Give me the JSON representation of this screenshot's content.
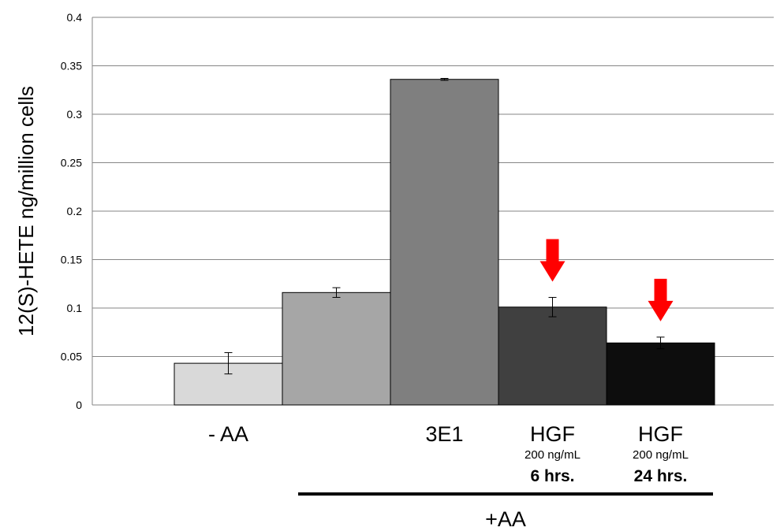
{
  "chart_data": {
    "type": "bar",
    "ylabel": "12(S)-HETE ng/million cells",
    "xlabel": "",
    "ylim": [
      0,
      0.4
    ],
    "y_ticks": [
      "0",
      "0.05",
      "0.1",
      "0.15",
      "0.2",
      "0.25",
      "0.3",
      "0.35",
      "0.4"
    ],
    "grid": true,
    "categories": [
      {
        "label": "- AA",
        "sub": "",
        "time": ""
      },
      {
        "label": "",
        "sub": "",
        "time": ""
      },
      {
        "label": "3E1",
        "sub": "",
        "time": ""
      },
      {
        "label": "HGF",
        "sub": "200 ng/mL",
        "time": "6 hrs."
      },
      {
        "label": "HGF",
        "sub": "200 ng/mL",
        "time": "24 hrs."
      }
    ],
    "values": [
      0.043,
      0.116,
      0.336,
      0.101,
      0.064
    ],
    "errors": [
      0.011,
      0.005,
      0.001,
      0.01,
      0.006
    ],
    "bar_colors": [
      "#d9d9d9",
      "#a6a6a6",
      "#7f7f7f",
      "#404040",
      "#0d0d0d"
    ],
    "group_label": "+AA",
    "group_span": [
      1,
      4
    ],
    "annotations": [
      {
        "type": "down-arrow",
        "category_index": 3,
        "color": "#ff0000"
      },
      {
        "type": "down-arrow",
        "category_index": 4,
        "color": "#ff0000"
      }
    ]
  }
}
